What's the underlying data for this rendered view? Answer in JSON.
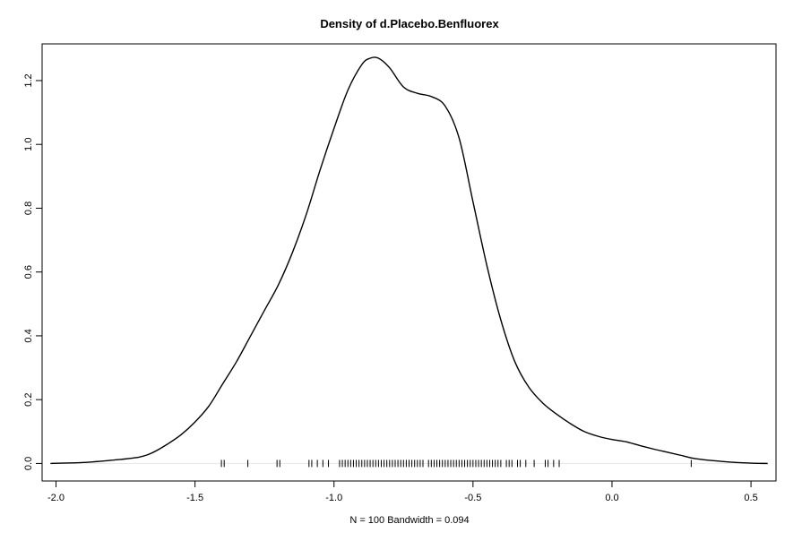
{
  "chart_data": {
    "type": "line",
    "title": "Density of d.Placebo.Benfluorex",
    "xlabel": "N = 100   Bandwidth = 0.094",
    "ylabel": "",
    "xlim": [
      -2.05,
      0.59
    ],
    "ylim": [
      -0.055,
      1.315
    ],
    "x_ticks": [
      -2.0,
      -1.5,
      -1.0,
      -0.5,
      0.0,
      0.5
    ],
    "x_tick_labels": [
      "-2.0",
      "-1.5",
      "-1.0",
      "-0.5",
      "0.0",
      "0.5"
    ],
    "y_ticks": [
      0.0,
      0.2,
      0.4,
      0.6,
      0.8,
      1.0,
      1.2
    ],
    "y_tick_labels": [
      "0.0",
      "0.2",
      "0.4",
      "0.6",
      "0.8",
      "1.0",
      "1.2"
    ],
    "grid": false,
    "legend": "none",
    "zero_line": true,
    "series": [
      {
        "x": [
          -2.02,
          -1.9,
          -1.8,
          -1.7,
          -1.65,
          -1.6,
          -1.55,
          -1.5,
          -1.45,
          -1.4,
          -1.35,
          -1.3,
          -1.25,
          -1.2,
          -1.15,
          -1.1,
          -1.05,
          -1.0,
          -0.95,
          -0.9,
          -0.87,
          -0.84,
          -0.8,
          -0.75,
          -0.7,
          -0.65,
          -0.6,
          -0.55,
          -0.5,
          -0.45,
          -0.4,
          -0.35,
          -0.3,
          -0.25,
          -0.2,
          -0.15,
          -0.1,
          -0.05,
          0.0,
          0.05,
          0.1,
          0.15,
          0.2,
          0.25,
          0.3,
          0.4,
          0.5,
          0.56
        ],
        "y": [
          0.0,
          0.003,
          0.01,
          0.02,
          0.035,
          0.06,
          0.09,
          0.13,
          0.18,
          0.25,
          0.32,
          0.4,
          0.48,
          0.56,
          0.66,
          0.78,
          0.92,
          1.05,
          1.17,
          1.25,
          1.27,
          1.27,
          1.24,
          1.18,
          1.16,
          1.15,
          1.12,
          1.02,
          0.82,
          0.62,
          0.45,
          0.32,
          0.24,
          0.19,
          0.155,
          0.125,
          0.1,
          0.085,
          0.075,
          0.068,
          0.056,
          0.045,
          0.035,
          0.025,
          0.015,
          0.006,
          0.001,
          0.0
        ]
      }
    ],
    "rug": [
      -1.405,
      -1.395,
      -1.31,
      -1.205,
      -1.195,
      -1.09,
      -1.08,
      -1.06,
      -1.04,
      -1.02,
      -0.98,
      -0.97,
      -0.96,
      -0.95,
      -0.94,
      -0.93,
      -0.92,
      -0.91,
      -0.9,
      -0.89,
      -0.88,
      -0.87,
      -0.86,
      -0.85,
      -0.84,
      -0.83,
      -0.82,
      -0.81,
      -0.8,
      -0.79,
      -0.78,
      -0.77,
      -0.76,
      -0.75,
      -0.74,
      -0.73,
      -0.72,
      -0.71,
      -0.7,
      -0.69,
      -0.68,
      -0.66,
      -0.65,
      -0.64,
      -0.63,
      -0.62,
      -0.61,
      -0.6,
      -0.59,
      -0.58,
      -0.57,
      -0.56,
      -0.55,
      -0.54,
      -0.53,
      -0.52,
      -0.51,
      -0.5,
      -0.49,
      -0.48,
      -0.47,
      -0.46,
      -0.45,
      -0.44,
      -0.43,
      -0.42,
      -0.41,
      -0.4,
      -0.38,
      -0.37,
      -0.36,
      -0.34,
      -0.33,
      -0.31,
      -0.28,
      -0.24,
      -0.23,
      -0.21,
      -0.19,
      0.285
    ]
  }
}
